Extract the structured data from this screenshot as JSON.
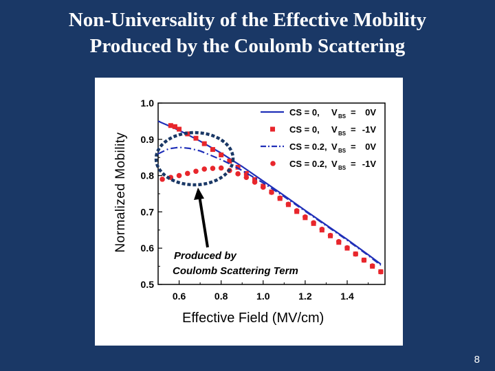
{
  "slide": {
    "title_line1": "Non-Universality of the Effective Mobility",
    "title_line2": "Produced by the Coulomb Scattering",
    "page_number": "8"
  },
  "chart_data": {
    "type": "line",
    "title": "",
    "xlabel": "Effective Field (MV/cm)",
    "ylabel": "Normalized Mobility",
    "xlim": [
      0.5,
      1.58
    ],
    "ylim": [
      0.5,
      1.0
    ],
    "xticks": [
      "0.6",
      "0.8",
      "1.0",
      "1.2",
      "1.4"
    ],
    "yticks": [
      "0.5",
      "0.6",
      "0.7",
      "0.8",
      "0.9",
      "1.0"
    ],
    "series": [
      {
        "name": "CS = 0,",
        "vbs": "0V",
        "style": "solid-line",
        "color": "#1f2fb8",
        "x": [
          0.5,
          0.6,
          0.7,
          0.8,
          0.9,
          1.0,
          1.1,
          1.2,
          1.3,
          1.4,
          1.5,
          1.56
        ],
        "y": [
          0.95,
          0.925,
          0.895,
          0.862,
          0.825,
          0.785,
          0.745,
          0.704,
          0.664,
          0.624,
          0.582,
          0.556
        ]
      },
      {
        "name": "CS = 0,",
        "vbs": "-1V",
        "style": "square-markers",
        "color": "#e8262c",
        "x": [
          0.56,
          0.58,
          0.6,
          0.64,
          0.68,
          0.72,
          0.76,
          0.8,
          0.84,
          0.88,
          0.92,
          0.96,
          1.0,
          1.04,
          1.08,
          1.12,
          1.16,
          1.2,
          1.24,
          1.28,
          1.32,
          1.36,
          1.4,
          1.44,
          1.48,
          1.52,
          1.56
        ],
        "y": [
          0.938,
          0.935,
          0.928,
          0.915,
          0.903,
          0.888,
          0.872,
          0.857,
          0.84,
          0.823,
          0.806,
          0.789,
          0.771,
          0.755,
          0.737,
          0.72,
          0.701,
          0.684,
          0.668,
          0.65,
          0.634,
          0.616,
          0.6,
          0.584,
          0.567,
          0.55,
          0.535
        ]
      },
      {
        "name": "CS = 0.2,",
        "vbs": "0V",
        "style": "dash-dot-line",
        "color": "#1f2fb8",
        "x": [
          0.5,
          0.55,
          0.6,
          0.65,
          0.7,
          0.75,
          0.8,
          0.85,
          0.9,
          0.95,
          1.0,
          1.1,
          1.2,
          1.3,
          1.4,
          1.5,
          1.56
        ],
        "y": [
          0.86,
          0.874,
          0.878,
          0.875,
          0.868,
          0.856,
          0.844,
          0.83,
          0.814,
          0.797,
          0.78,
          0.742,
          0.702,
          0.662,
          0.622,
          0.58,
          0.553
        ]
      },
      {
        "name": "CS = 0.2,",
        "vbs": "-1V",
        "style": "circle-markers",
        "color": "#e8262c",
        "x": [
          0.52,
          0.56,
          0.6,
          0.64,
          0.68,
          0.72,
          0.76,
          0.8,
          0.84,
          0.88,
          0.92,
          0.96,
          1.0,
          1.04,
          1.08,
          1.12,
          1.16,
          1.2,
          1.24,
          1.28,
          1.32,
          1.36,
          1.4,
          1.44,
          1.48,
          1.52,
          1.56
        ],
        "y": [
          0.79,
          0.795,
          0.8,
          0.806,
          0.812,
          0.818,
          0.82,
          0.821,
          0.814,
          0.805,
          0.795,
          0.782,
          0.768,
          0.754,
          0.738,
          0.721,
          0.703,
          0.686,
          0.67,
          0.652,
          0.635,
          0.618,
          0.601,
          0.584,
          0.567,
          0.551,
          0.535
        ]
      }
    ],
    "annotation": {
      "line1": "Produced by",
      "line2": "Coulomb Scattering Term"
    },
    "legend_position": "top-right"
  }
}
